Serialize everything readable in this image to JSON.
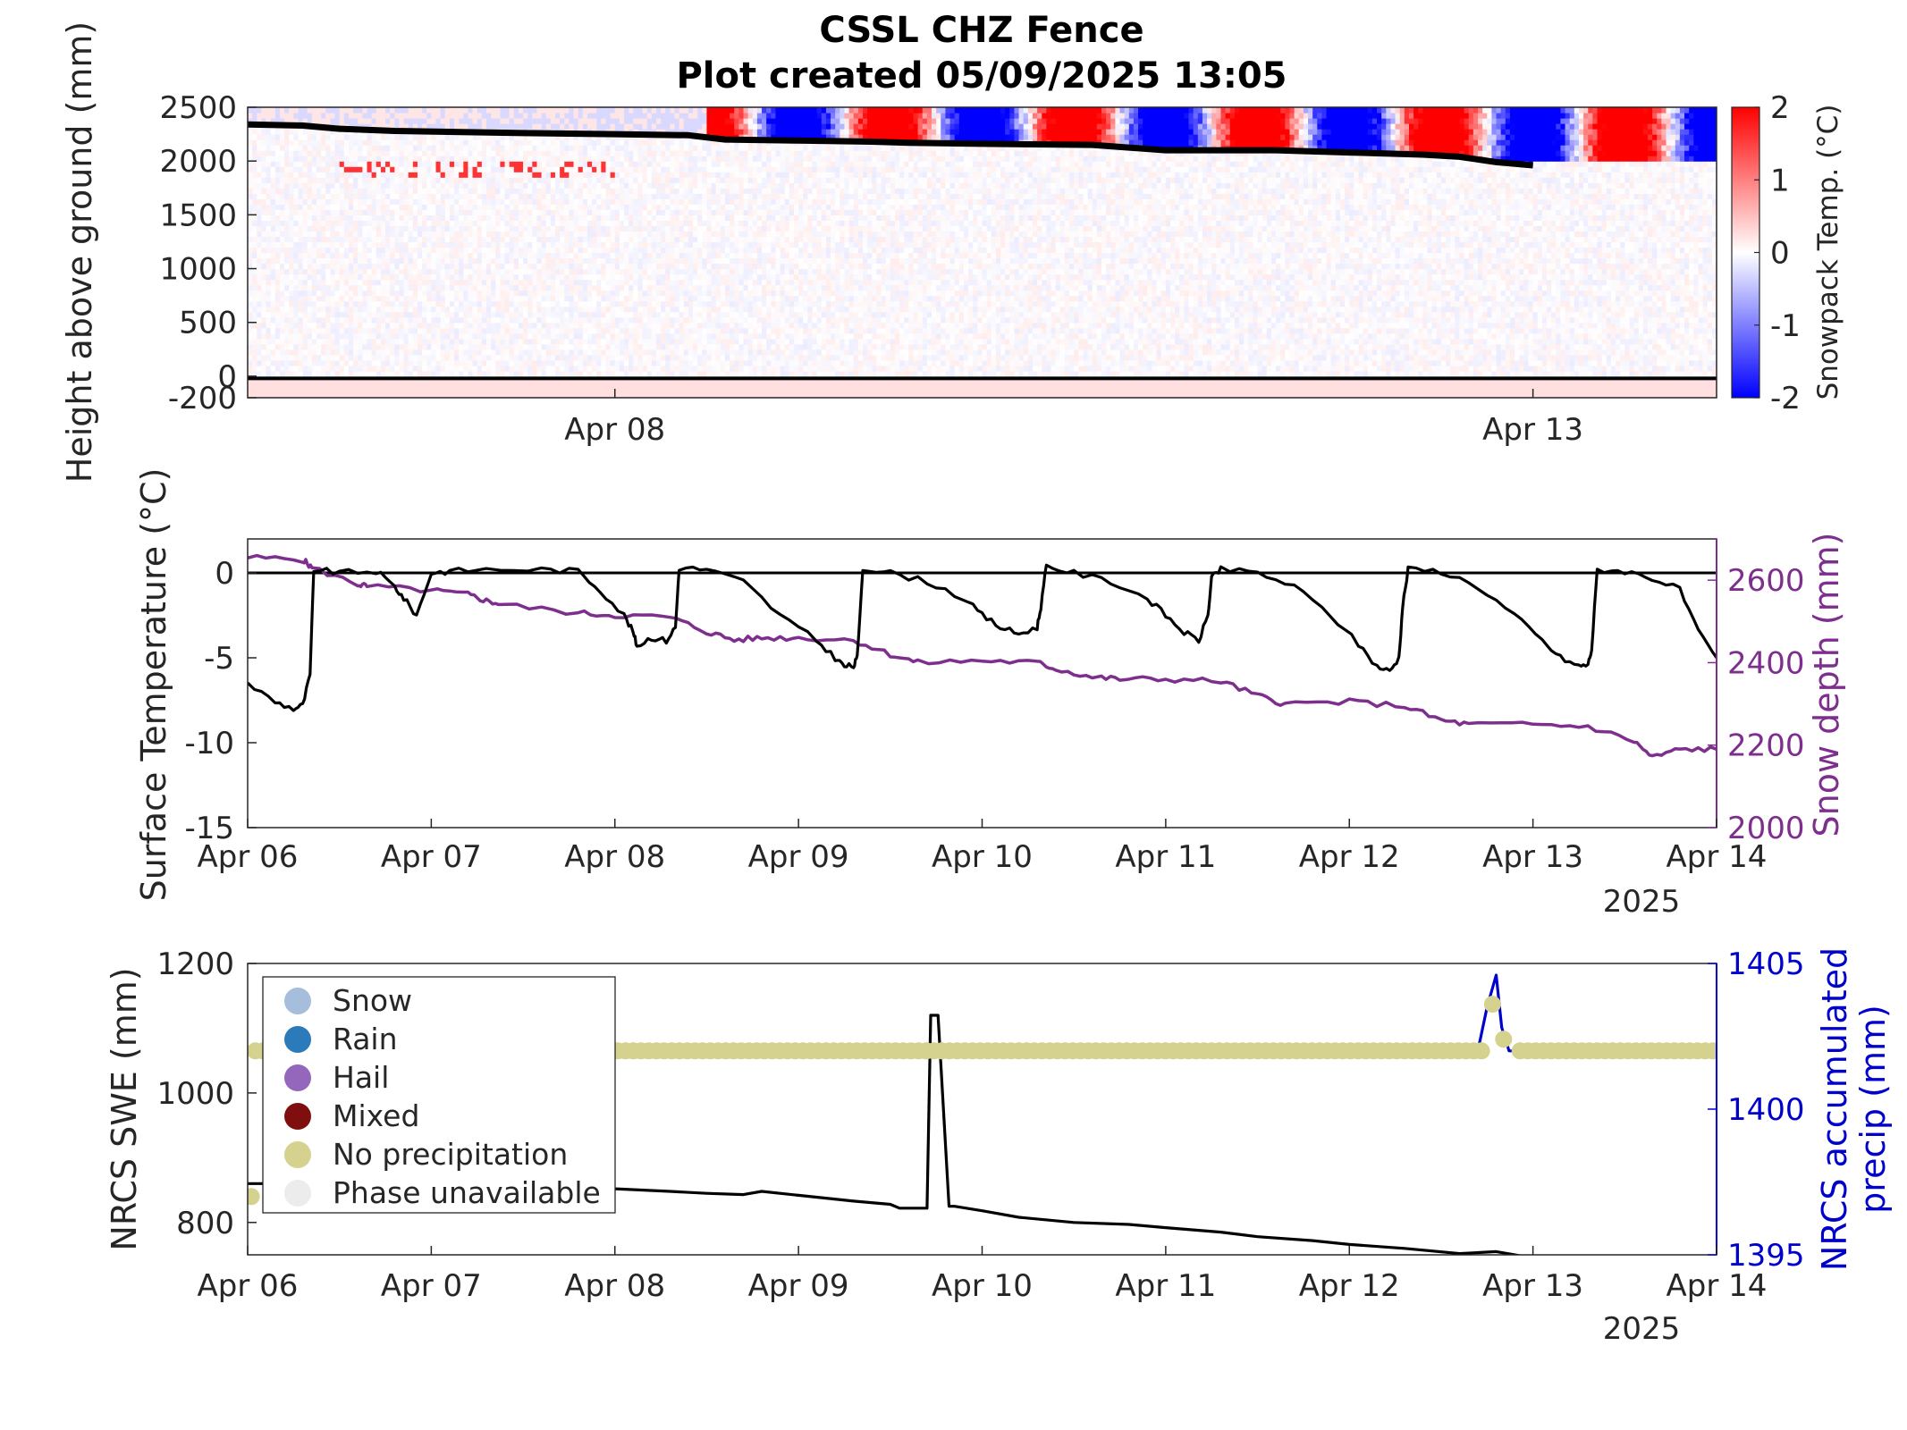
{
  "title": {
    "line1": "CSSL CHZ Fence",
    "line2": "Plot created 05/09/2025 13:05"
  },
  "chart_data": [
    {
      "type": "heatmap",
      "name": "snowpack-temperature-profile",
      "ylabel": "Height above ground (mm)",
      "colorbar_label": "Snowpack Temp. (°C)",
      "ylim": [
        -200,
        2500
      ],
      "yticks": [
        -200,
        0,
        500,
        1000,
        1500,
        2000,
        2500
      ],
      "xlim_days": [
        0,
        8
      ],
      "xticks": [
        {
          "day": 2,
          "label": "Apr 08"
        },
        {
          "day": 7,
          "label": "Apr 13"
        }
      ],
      "clim": [
        -2,
        2
      ],
      "colorbar_ticks": [
        -2,
        -1,
        0,
        1,
        2
      ],
      "colormap": {
        "low": "#0000ff",
        "mid": "#ffffff",
        "high": "#ff0000"
      },
      "snow_depth_line": {
        "x_days": [
          0,
          0.3,
          0.5,
          0.8,
          1.5,
          2.0,
          2.4,
          2.6,
          3.0,
          3.4,
          3.6,
          4.0,
          4.6,
          5.0,
          5.6,
          6.0,
          6.4,
          6.6,
          6.8,
          7.0
        ],
        "y_mm": [
          2340,
          2330,
          2300,
          2280,
          2260,
          2250,
          2240,
          2200,
          2190,
          2180,
          2170,
          2160,
          2150,
          2100,
          2100,
          2080,
          2060,
          2040,
          1990,
          1960
        ]
      },
      "ground_line_mm": -20
    },
    {
      "type": "line",
      "name": "surface-temperature-and-snow-depth",
      "ylabel": "Surface Temperature (°C)",
      "ylabel_right": "Snow depth (mm)",
      "ylim": [
        -15,
        2
      ],
      "yticks": [
        0,
        -5,
        -10,
        -15
      ],
      "ylim_right": [
        2000,
        2700
      ],
      "yticks_right": [
        2000,
        2200,
        2400,
        2600
      ],
      "xlim_days": [
        0,
        8
      ],
      "x_tick_labels": [
        "Apr 06",
        "Apr 07",
        "Apr 08",
        "Apr 09",
        "Apr 10",
        "Apr 11",
        "Apr 12",
        "Apr 13",
        "Apr 14"
      ],
      "year_label": "2025",
      "zero_line": 0,
      "series": [
        {
          "name": "surface-temperature",
          "color": "#000000",
          "x_days": [
            0,
            0.15,
            0.25,
            0.3,
            0.34,
            0.36,
            0.5,
            0.7,
            0.8,
            0.85,
            0.92,
            1.0,
            1.1,
            1.3,
            1.6,
            1.8,
            1.92,
            2.05,
            2.1,
            2.12,
            2.2,
            2.28,
            2.33,
            2.35,
            2.5,
            2.7,
            2.9,
            3.1,
            3.2,
            3.25,
            3.3,
            3.32,
            3.35,
            3.5,
            3.7,
            3.9,
            4.0,
            4.1,
            4.2,
            4.3,
            4.32,
            4.35,
            4.5,
            4.7,
            4.9,
            5.0,
            5.1,
            5.18,
            5.23,
            5.25,
            5.3,
            5.5,
            5.7,
            5.9,
            6.05,
            6.15,
            6.22,
            6.27,
            6.29,
            6.32,
            6.5,
            6.7,
            6.9,
            7.05,
            7.15,
            7.25,
            7.3,
            7.32,
            7.35,
            7.5,
            7.65,
            7.8,
            7.9,
            8.0
          ],
          "values": [
            -6.5,
            -7.6,
            -8.0,
            -7.8,
            -6.0,
            0.2,
            0.0,
            0.1,
            -0.8,
            -1.5,
            -2.5,
            0.0,
            0.1,
            0.2,
            0.2,
            0.1,
            -1.0,
            -2.5,
            -3.5,
            -4.3,
            -3.8,
            -4.0,
            -3.2,
            0.3,
            0.2,
            -0.5,
            -2.5,
            -4.0,
            -5.0,
            -5.5,
            -5.5,
            -5.0,
            0.3,
            0.0,
            -0.5,
            -1.5,
            -2.5,
            -3.2,
            -3.6,
            -3.2,
            -2.0,
            0.4,
            0.0,
            -0.5,
            -1.5,
            -2.5,
            -3.5,
            -4.0,
            -2.5,
            -0.3,
            0.2,
            0.0,
            -0.8,
            -2.5,
            -4.2,
            -5.5,
            -5.8,
            -5.0,
            -2.0,
            0.2,
            0.1,
            -0.8,
            -2.5,
            -4.0,
            -5.0,
            -5.5,
            -5.4,
            -4.5,
            0.2,
            0.1,
            -0.3,
            -1.0,
            -3.5,
            -5.0
          ]
        },
        {
          "name": "snow-depth",
          "color": "#7e2f8e",
          "axis": "right",
          "x_days": [
            0,
            0.3,
            0.35,
            0.6,
            0.65,
            1.0,
            1.2,
            1.3,
            1.4,
            1.8,
            2.0,
            2.3,
            2.5,
            2.65,
            2.8,
            3.0,
            3.3,
            3.5,
            3.65,
            4.0,
            4.3,
            4.4,
            4.6,
            4.75,
            5.0,
            5.3,
            5.5,
            5.65,
            6.0,
            6.3,
            6.5,
            6.65,
            7.0,
            7.3,
            7.55,
            7.65,
            7.8,
            8.0
          ],
          "values": [
            2655,
            2650,
            2630,
            2590,
            2585,
            2575,
            2565,
            2550,
            2540,
            2520,
            2515,
            2510,
            2475,
            2455,
            2460,
            2460,
            2455,
            2420,
            2400,
            2405,
            2400,
            2385,
            2365,
            2360,
            2360,
            2355,
            2320,
            2300,
            2305,
            2295,
            2260,
            2250,
            2250,
            2245,
            2210,
            2170,
            2190,
            2190
          ]
        }
      ]
    },
    {
      "type": "line",
      "name": "nrcs-swe-and-precip",
      "ylabel": "NRCS SWE (mm)",
      "ylabel_right_lines": [
        "NRCS accumulated",
        "precip (mm)"
      ],
      "ylim": [
        750,
        1200
      ],
      "yticks": [
        800,
        1000,
        1200
      ],
      "ylim_right": [
        1395,
        1405
      ],
      "yticks_right": [
        1395,
        1400,
        1405
      ],
      "xlim_days": [
        0,
        8
      ],
      "x_tick_labels": [
        "Apr 06",
        "Apr 07",
        "Apr 08",
        "Apr 09",
        "Apr 10",
        "Apr 11",
        "Apr 12",
        "Apr 13",
        "Apr 14"
      ],
      "year_label": "2025",
      "legend": {
        "placement": "top-left",
        "entries": [
          {
            "label": "Snow",
            "color": "#a6bddb"
          },
          {
            "label": "Rain",
            "color": "#2b7bba"
          },
          {
            "label": "Hail",
            "color": "#9467bd"
          },
          {
            "label": "Mixed",
            "color": "#7f0f0f"
          },
          {
            "label": "No precipitation",
            "color": "#d4d28e"
          },
          {
            "label": "Phase unavailable",
            "color": "#ececec"
          }
        ]
      },
      "series": [
        {
          "name": "nrcs-swe",
          "color": "#000000",
          "x_days": [
            0,
            0.5,
            1.0,
            1.5,
            1.9,
            2.0,
            2.3,
            2.5,
            2.7,
            2.8,
            3.0,
            3.3,
            3.5,
            3.55,
            3.7,
            3.72,
            3.76,
            3.82,
            3.85,
            4.0,
            4.2,
            4.5,
            4.8,
            5.0,
            5.3,
            5.5,
            5.8,
            6.0,
            6.3,
            6.6,
            6.8,
            6.9,
            7.0
          ],
          "values": [
            860,
            860,
            858,
            857,
            855,
            852,
            848,
            845,
            843,
            848,
            842,
            833,
            828,
            822,
            822,
            1120,
            1120,
            825,
            825,
            818,
            808,
            800,
            797,
            792,
            785,
            778,
            772,
            766,
            760,
            752,
            755,
            750,
            745
          ]
        },
        {
          "name": "nrcs-accumulated-precip",
          "color": "#0000cc",
          "axis": "right",
          "x_days": [
            0,
            6.7,
            6.75,
            6.8,
            6.83,
            6.87,
            8.0
          ],
          "values": [
            1402,
            1402,
            1403.5,
            1404.6,
            1402.8,
            1402,
            1402
          ]
        }
      ],
      "phase_points": {
        "phase": "No precipitation",
        "x_days_start": 0,
        "x_days_end": 8,
        "step_days": 0.042,
        "value": 1402,
        "spike": [
          {
            "x_day": 6.78,
            "value": 1403.6
          },
          {
            "x_day": 6.84,
            "value": 1402.4
          }
        ],
        "first_point_value": 1397
      }
    }
  ]
}
